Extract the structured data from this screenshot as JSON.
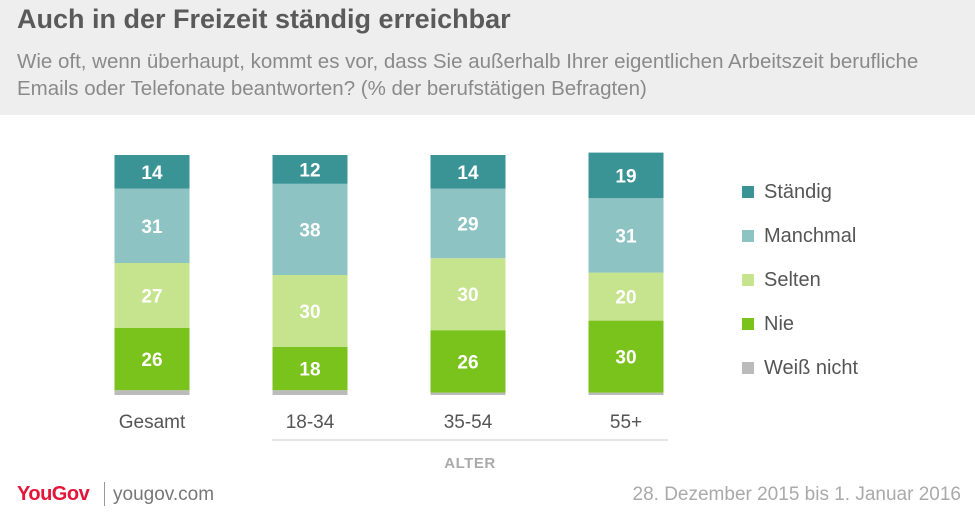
{
  "header": {
    "title": "Auch in der Freizeit ständig erreichbar",
    "subtitle": "Wie oft, wenn überhaupt, kommt es vor, dass Sie außerhalb Ihrer eigentlichen Arbeitszeit berufliche Emails oder Telefonate beantworten? (% der berufstätigen Befragten)"
  },
  "chart_data": {
    "type": "bar",
    "stacked": true,
    "categories": [
      "Gesamt",
      "18-34",
      "35-54",
      "55+"
    ],
    "group_label": "ALTER",
    "series": [
      {
        "name": "Weiß nicht",
        "color": "#bbbbbb",
        "values": [
          2,
          2,
          1,
          1
        ]
      },
      {
        "name": "Nie",
        "color": "#7ac21c",
        "values": [
          26,
          18,
          26,
          30
        ]
      },
      {
        "name": "Selten",
        "color": "#c6e38d",
        "values": [
          27,
          30,
          30,
          20
        ]
      },
      {
        "name": "Manchmal",
        "color": "#8ec3c4",
        "values": [
          31,
          38,
          29,
          31
        ]
      },
      {
        "name": "Ständig",
        "color": "#3a9394",
        "values": [
          14,
          12,
          14,
          19
        ]
      }
    ],
    "legend": [
      "Ständig",
      "Manchmal",
      "Selten",
      "Nie",
      "Weiß nicht"
    ],
    "legend_position": "right",
    "grid": false
  },
  "footer": {
    "logo": "YouGov",
    "site": "yougov.com",
    "date": "28. Dezember 2015 bis 1. Januar 2016"
  }
}
